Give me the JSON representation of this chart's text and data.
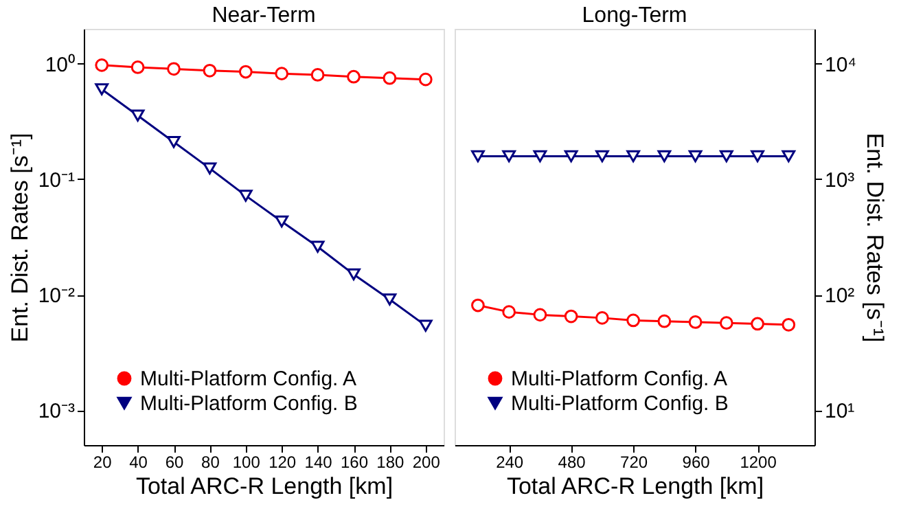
{
  "chart_data": [
    {
      "type": "line",
      "title": "Near-Term",
      "xlabel": "Total ARC-R Length [km]",
      "ylabel": "Ent. Dist. Rates [s⁻¹]",
      "log": "y",
      "grid": false,
      "legend": "bottom left",
      "x": [
        20,
        40,
        60,
        80,
        100,
        120,
        140,
        160,
        180,
        200
      ],
      "xlim": [
        10,
        210
      ],
      "xticks": [
        20,
        40,
        60,
        80,
        100,
        120,
        140,
        160,
        180,
        200
      ],
      "ylim": [
        0.0005,
        2
      ],
      "yticks": [
        {
          "value": 0.001,
          "label": "10⁻³"
        },
        {
          "value": 0.01,
          "label": "10⁻²"
        },
        {
          "value": 0.1,
          "label": "10⁻¹"
        },
        {
          "value": 1,
          "label": "10⁰"
        }
      ],
      "series": [
        {
          "name": "Multi-Platform Config. A",
          "color": "#ff0000",
          "marker": "circle",
          "values": [
            0.97,
            0.93,
            0.9,
            0.87,
            0.85,
            0.82,
            0.8,
            0.77,
            0.75,
            0.73
          ]
        },
        {
          "name": "Multi-Platform Config. B",
          "color": "#000080",
          "marker": "triangle",
          "values": [
            0.6,
            0.355,
            0.21,
            0.124,
            0.072,
            0.043,
            0.026,
            0.015,
            0.0091,
            0.0054
          ]
        }
      ]
    },
    {
      "type": "line",
      "title": "Long-Term",
      "xlabel": "Total ARC-R Length [km]",
      "ylabel": "Ent. Dist. Rates [s⁻¹]",
      "log": "y",
      "grid": false,
      "legend": "bottom left",
      "x": [
        120,
        240,
        360,
        480,
        600,
        720,
        840,
        960,
        1080,
        1200,
        1320
      ],
      "xlim": [
        30,
        1420
      ],
      "xticks": [
        240,
        480,
        720,
        960,
        1200
      ],
      "ylim": [
        5,
        20000
      ],
      "yticks": [
        {
          "value": 10,
          "label": "10¹"
        },
        {
          "value": 100,
          "label": "10²"
        },
        {
          "value": 1000,
          "label": "10³"
        },
        {
          "value": 10000,
          "label": "10⁴"
        }
      ],
      "series": [
        {
          "name": "Multi-Platform Config. A",
          "color": "#ff0000",
          "marker": "circle",
          "values": [
            81,
            71,
            67,
            65,
            63,
            60,
            59,
            58,
            57,
            56,
            55
          ]
        },
        {
          "name": "Multi-Platform Config. B",
          "color": "#000080",
          "marker": "triangle",
          "values": [
            1580,
            1580,
            1580,
            1580,
            1580,
            1580,
            1580,
            1580,
            1580,
            1580,
            1580
          ]
        }
      ]
    }
  ]
}
